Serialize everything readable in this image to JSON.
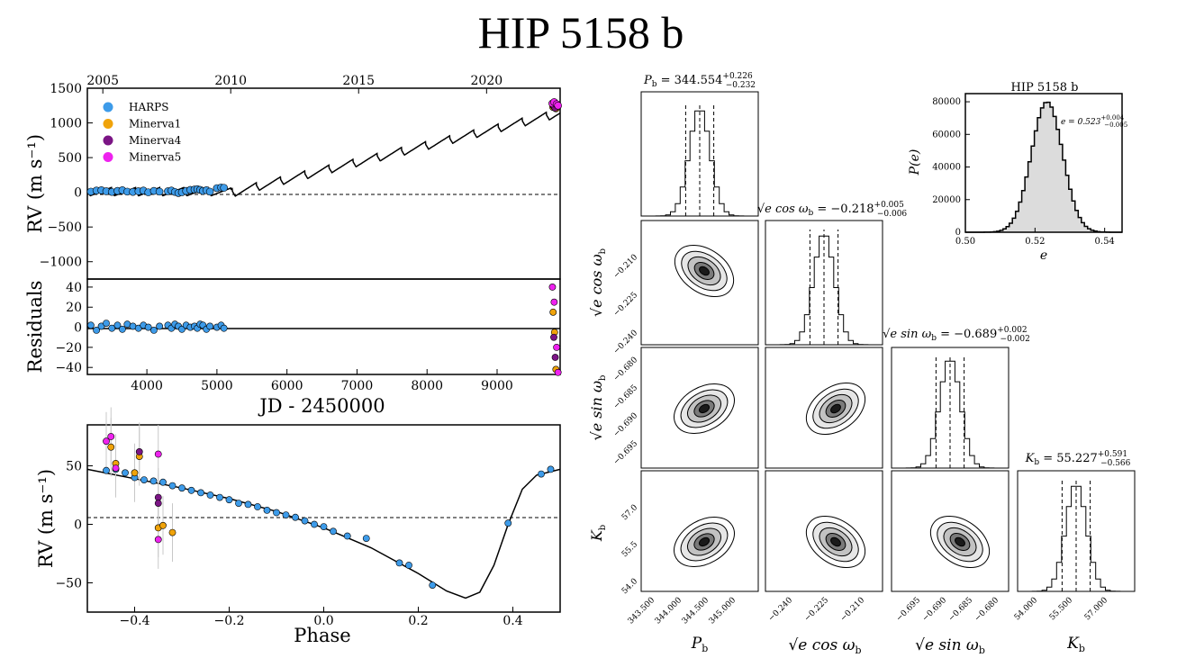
{
  "title": "HIP 5158 b",
  "rv_time": {
    "ylabel": "RV (m s⁻¹)",
    "yticks": [
      "1500",
      "1000",
      "500",
      "0",
      "−500",
      "−1000"
    ],
    "ytick_values": [
      1500,
      1000,
      500,
      0,
      -500,
      -1000
    ],
    "ylim": [
      -1250,
      1500
    ],
    "xlim": [
      3150,
      9900
    ],
    "top_year_ticks": [
      "2005",
      "2010",
      "2015",
      "2020"
    ],
    "top_year_jd": [
      3371,
      5197,
      7023,
      8850
    ],
    "legend": [
      {
        "name": "HARPS",
        "color": "#3d9be9"
      },
      {
        "name": "Minerva1",
        "color": "#f0a30a"
      },
      {
        "name": "Minerva4",
        "color": "#7b1585"
      },
      {
        "name": "Minerva5",
        "color": "#ee22ee"
      }
    ]
  },
  "residuals": {
    "ylabel": "Residuals",
    "yticks": [
      "40",
      "20",
      "0",
      "−20",
      "−40"
    ],
    "ytick_values": [
      40,
      20,
      0,
      -20,
      -40
    ],
    "ylim": [
      -47,
      48
    ],
    "xticks": [
      "4000",
      "5000",
      "6000",
      "7000",
      "8000",
      "9000"
    ],
    "xtick_values": [
      4000,
      5000,
      6000,
      7000,
      8000,
      9000
    ],
    "xlabel": "JD - 2450000"
  },
  "phase": {
    "ylabel": "RV (m s⁻¹)",
    "xlabel": "Phase",
    "yticks": [
      "50",
      "0",
      "−50"
    ],
    "ytick_values": [
      50,
      0,
      -50
    ],
    "ylim": [
      -75,
      85
    ],
    "xticks": [
      "−0.4",
      "−0.2",
      "0.0",
      "0.2",
      "0.4"
    ],
    "xtick_values": [
      -0.4,
      -0.2,
      0.0,
      0.2,
      0.4
    ],
    "xlim": [
      -0.5,
      0.5
    ]
  },
  "corner": {
    "marginal_titles": {
      "p": {
        "base": "P",
        "sub": "b",
        "value": " = 344.554",
        "sup": "+0.226",
        "low": "−0.232"
      },
      "cos": {
        "base": "e cos ω",
        "sub": "b",
        "value": " = −0.218",
        "sup": "+0.005",
        "low": "−0.006"
      },
      "sin": {
        "base": "e sin ω",
        "sub": "b",
        "value": " = −0.689",
        "sup": "+0.002",
        "low": "−0.002"
      },
      "k": {
        "base": "K",
        "sub": "b",
        "value": " = 55.227",
        "sup": "+0.591",
        "low": "−0.566"
      }
    },
    "axis_labels": {
      "p": {
        "base": "P",
        "sub": "b"
      },
      "cos": {
        "base": "√e cos ω",
        "sub": "b"
      },
      "sin": {
        "base": "√e sin ω",
        "sub": "b"
      },
      "k": {
        "base": "K",
        "sub": "b"
      }
    },
    "p_ticks": [
      "343.500",
      "344.000",
      "344.500",
      "345.000"
    ],
    "cos_ticks": [
      "−0.210",
      "−0.225",
      "−0.240"
    ],
    "cos_xticks": [
      "−0.240",
      "−0.225",
      "−0.210"
    ],
    "sin_ticks": [
      "−0.680",
      "−0.685",
      "−0.690",
      "−0.695"
    ],
    "sin_xticks": [
      "−0.695",
      "−0.690",
      "−0.685",
      "−0.680"
    ],
    "k_ticks": [
      "57.0",
      "55.5",
      "54.0"
    ],
    "k_xticks": [
      "54.000",
      "55.500",
      "57.000"
    ]
  },
  "ecc": {
    "title": "HIP 5158 b",
    "xlabel": "e",
    "ylabel": "P(e)",
    "xticks": [
      "0.50",
      "0.52",
      "0.54"
    ],
    "yticks": [
      "80000",
      "60000",
      "40000",
      "20000",
      "0"
    ],
    "annotation": {
      "base": "e = 0.523",
      "sup": "+0.004",
      "low": "−0.005"
    }
  },
  "chart_data": [
    {
      "type": "scatter",
      "title": "HIP 5158 b",
      "xlabel": "JD - 2450000",
      "ylabel": "RV (m s⁻¹)",
      "ylim": [
        -1250,
        1500
      ],
      "series": [
        {
          "name": "HARPS",
          "x": [
            3200,
            3280,
            3350,
            3420,
            3500,
            3580,
            3650,
            3720,
            3800,
            3880,
            3950,
            4020,
            4100,
            4180,
            4300,
            4350,
            4400,
            4450,
            4500,
            4560,
            4620,
            4680,
            4720,
            4760,
            4800,
            4850,
            4900,
            5000,
            5060,
            5100
          ],
          "y": [
            10,
            25,
            30,
            15,
            5,
            20,
            30,
            10,
            5,
            15,
            25,
            0,
            20,
            10,
            15,
            25,
            5,
            -10,
            0,
            20,
            35,
            40,
            45,
            35,
            20,
            30,
            10,
            60,
            70,
            65
          ]
        },
        {
          "name": "Minerva1",
          "x": [
            9800,
            9820,
            9840
          ],
          "y": [
            1230,
            1260,
            1210
          ]
        },
        {
          "name": "Minerva4",
          "x": [
            9810,
            9830
          ],
          "y": [
            1245,
            1220
          ]
        },
        {
          "name": "Minerva5",
          "x": [
            9790,
            9815,
            9850,
            9870
          ],
          "y": [
            1280,
            1300,
            1270,
            1250
          ]
        }
      ],
      "grid": false,
      "legend": "top-left"
    },
    {
      "type": "scatter",
      "ylabel": "Residuals",
      "xlabel": "JD - 2450000",
      "ylim": [
        -47,
        48
      ],
      "series": [
        {
          "name": "HARPS",
          "x": [
            3200,
            3280,
            3350,
            3420,
            3500,
            3580,
            3650,
            3720,
            3800,
            3880,
            3950,
            4020,
            4100,
            4180,
            4300,
            4350,
            4400,
            4450,
            4500,
            4560,
            4620,
            4680,
            4720,
            4760,
            4800,
            4850,
            4900,
            5000,
            5060,
            5100
          ],
          "y": [
            2,
            -3,
            1,
            4,
            -1,
            2,
            -2,
            3,
            1,
            -1,
            2,
            0,
            -3,
            1,
            2,
            -1,
            3,
            1,
            -2,
            2,
            0,
            1,
            -1,
            3,
            2,
            -2,
            1,
            0,
            2,
            -1
          ]
        },
        {
          "name": "Minerva1",
          "x": [
            9800,
            9820,
            9840
          ],
          "y": [
            15,
            -5,
            -42
          ]
        },
        {
          "name": "Minerva4",
          "x": [
            9810,
            9830
          ],
          "y": [
            -10,
            -30
          ]
        },
        {
          "name": "Minerva5",
          "x": [
            9790,
            9815,
            9850,
            9870
          ],
          "y": [
            40,
            25,
            -20,
            -45
          ]
        }
      ],
      "grid": false
    },
    {
      "type": "scatter",
      "xlabel": "Phase",
      "ylabel": "RV (m s⁻¹)",
      "xlim": [
        -0.5,
        0.5
      ],
      "ylim": [
        -75,
        85
      ],
      "series": [
        {
          "name": "HARPS",
          "x": [
            -0.46,
            -0.44,
            -0.42,
            -0.4,
            -0.38,
            -0.36,
            -0.34,
            -0.32,
            -0.3,
            -0.28,
            -0.26,
            -0.24,
            -0.22,
            -0.2,
            -0.18,
            -0.16,
            -0.14,
            -0.12,
            -0.1,
            -0.08,
            -0.06,
            -0.04,
            -0.02,
            0.0,
            0.02,
            0.05,
            0.09,
            0.16,
            0.18,
            0.23,
            0.39,
            0.46,
            0.48
          ],
          "y": [
            46,
            47,
            44,
            40,
            38,
            37,
            36,
            33,
            31,
            29,
            27,
            25,
            23,
            21,
            18,
            17,
            15,
            12,
            10,
            8,
            6,
            3,
            0,
            -2,
            -6,
            -10,
            -12,
            -33,
            -35,
            -52,
            1,
            43,
            47
          ]
        },
        {
          "name": "Minerva1",
          "x": [
            -0.45,
            -0.44,
            -0.4,
            -0.39,
            -0.35,
            -0.34,
            -0.32
          ],
          "y": [
            66,
            52,
            44,
            58,
            -3,
            -1,
            -7
          ]
        },
        {
          "name": "Minerva4",
          "x": [
            -0.39,
            -0.35,
            -0.35
          ],
          "y": [
            62,
            23,
            18
          ]
        },
        {
          "name": "Minerva5",
          "x": [
            -0.46,
            -0.45,
            -0.44,
            -0.35,
            -0.35
          ],
          "y": [
            71,
            75,
            48,
            -13,
            60
          ]
        }
      ],
      "grid": false
    },
    {
      "type": "histogram",
      "title": "HIP 5158 b",
      "xlabel": "e",
      "ylabel": "P(e)",
      "x": [
        0.5,
        0.505,
        0.51,
        0.513,
        0.516,
        0.519,
        0.521,
        0.523,
        0.525,
        0.527,
        0.529,
        0.532,
        0.535,
        0.54,
        0.545
      ],
      "values": [
        0,
        200,
        3000,
        12000,
        32000,
        60000,
        75000,
        80000,
        74000,
        58000,
        34000,
        14000,
        4000,
        500,
        0
      ],
      "ylim": [
        0,
        85000
      ],
      "grid": false
    }
  ]
}
